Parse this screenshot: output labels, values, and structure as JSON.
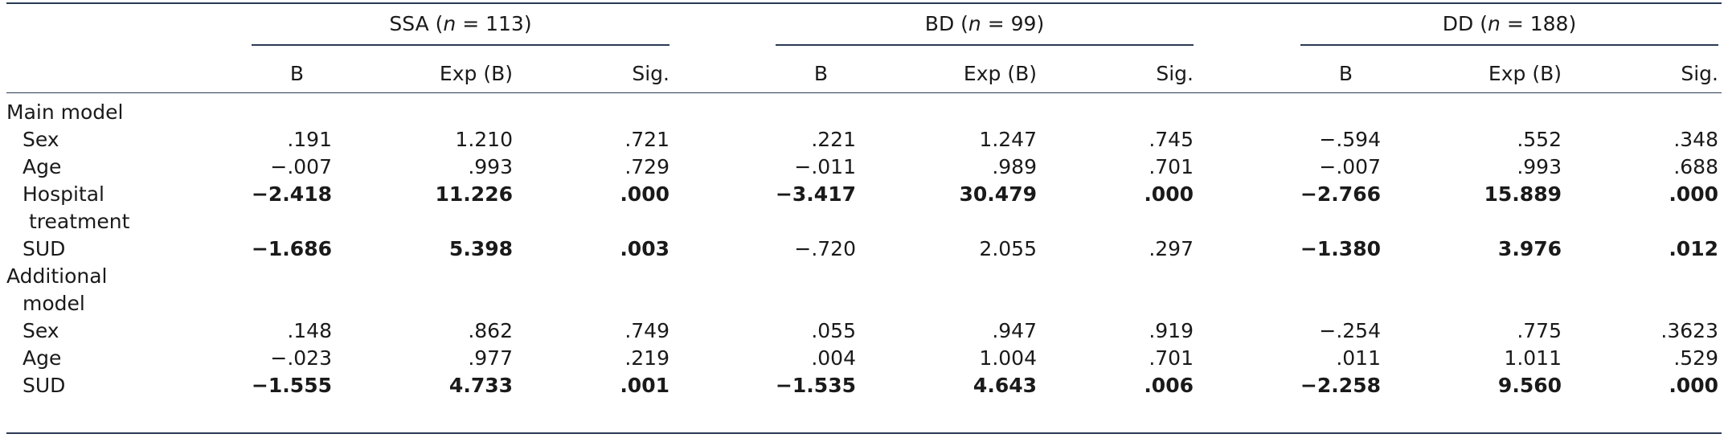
{
  "groups": [
    {
      "name": "SSA",
      "n_label": "n",
      "n_value": "= 113"
    },
    {
      "name": "BD",
      "n_label": "n",
      "n_value": "= 99"
    },
    {
      "name": "DD",
      "n_label": "n",
      "n_value": "= 188"
    }
  ],
  "col_headers": [
    "B",
    "Exp (B)",
    "Sig."
  ],
  "sections": [
    {
      "title": "Main model",
      "rows": [
        {
          "label": "Sex",
          "cells": [
            ".191",
            "1.210",
            ".721",
            ".221",
            "1.247",
            ".745",
            "−.594",
            ".552",
            ".348"
          ],
          "bold": [
            false,
            false,
            false,
            false,
            false,
            false,
            false,
            false,
            false
          ]
        },
        {
          "label": "Age",
          "cells": [
            "−.007",
            ".993",
            ".729",
            "−.011",
            ".989",
            ".701",
            "−.007",
            ".993",
            ".688"
          ],
          "bold": [
            false,
            false,
            false,
            false,
            false,
            false,
            false,
            false,
            false
          ]
        },
        {
          "label": "Hospital",
          "label_cont": "treatment",
          "cells": [
            "−2.418",
            "11.226",
            ".000",
            "−3.417",
            "30.479",
            ".000",
            "−2.766",
            "15.889",
            ".000"
          ],
          "bold": [
            true,
            true,
            true,
            true,
            true,
            true,
            true,
            true,
            true
          ]
        },
        {
          "label": "SUD",
          "cells": [
            "−1.686",
            "5.398",
            ".003",
            "−.720",
            "2.055",
            ".297",
            "−1.380",
            "3.976",
            ".012"
          ],
          "bold": [
            true,
            true,
            true,
            false,
            false,
            false,
            true,
            true,
            true
          ]
        }
      ]
    },
    {
      "title": "Additional",
      "title_cont": "model",
      "rows": [
        {
          "label": "Sex",
          "cells": [
            ".148",
            ".862",
            ".749",
            ".055",
            ".947",
            ".919",
            "−.254",
            ".775",
            ".3623"
          ],
          "bold": [
            false,
            false,
            false,
            false,
            false,
            false,
            false,
            false,
            false
          ]
        },
        {
          "label": "Age",
          "cells": [
            "−.023",
            ".977",
            ".219",
            ".004",
            "1.004",
            ".701",
            ".011",
            "1.011",
            ".529"
          ],
          "bold": [
            false,
            false,
            false,
            false,
            false,
            false,
            false,
            false,
            false
          ]
        },
        {
          "label": "SUD",
          "cells": [
            "−1.555",
            "4.733",
            ".001",
            "−1.535",
            "4.643",
            ".006",
            "−2.258",
            "9.560",
            ".000"
          ],
          "bold": [
            true,
            true,
            true,
            true,
            true,
            true,
            true,
            true,
            true
          ]
        }
      ]
    }
  ]
}
